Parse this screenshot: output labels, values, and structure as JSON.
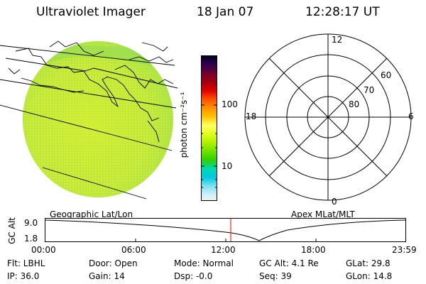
{
  "header": {
    "instrument": "Ultraviolet Imager",
    "date": "18 Jan 07",
    "time": "12:28:17 UT"
  },
  "left_panel": {
    "label": "Geographic Lat/Lon"
  },
  "right_panel": {
    "label": "Apex MLat/MLT",
    "mlt_labels": [
      "12",
      "18",
      "6",
      "0"
    ],
    "lat_labels": [
      "60",
      "70",
      "80"
    ]
  },
  "colorbar": {
    "unit_label": "photon cm⁻²s⁻¹",
    "ticks": [
      "100",
      "10"
    ],
    "colors": [
      "#000020",
      "#300050",
      "#700030",
      "#a00010",
      "#e00000",
      "#ff5000",
      "#ff9000",
      "#ffc000",
      "#ffff60",
      "#e0ff20",
      "#b0f000",
      "#70e000",
      "#30d000",
      "#00d8b0",
      "#00c8e0",
      "#80e0f0",
      "#d0f0f8",
      "#f0f0f0"
    ]
  },
  "altitude_strip": {
    "axis_title": "GC Alt",
    "y_ticks": [
      "9.0",
      "1.8"
    ],
    "x_ticks": [
      "00:00",
      "06:00",
      "12:00",
      "18:00",
      "23:59"
    ],
    "marker_color": "#e03020"
  },
  "info": {
    "filter": "Flt: LBHL",
    "ip": "IP: 36.0",
    "door": "Door: Open",
    "gain": "Gain: 14",
    "mode": "Mode: Normal",
    "dsp": "Dsp:   -0.0",
    "gc_alt": "GC Alt: 4.1 Re",
    "seq": "Seq: 39",
    "glat": "GLat:  29.8",
    "glon": "GLon:  14.8"
  }
}
